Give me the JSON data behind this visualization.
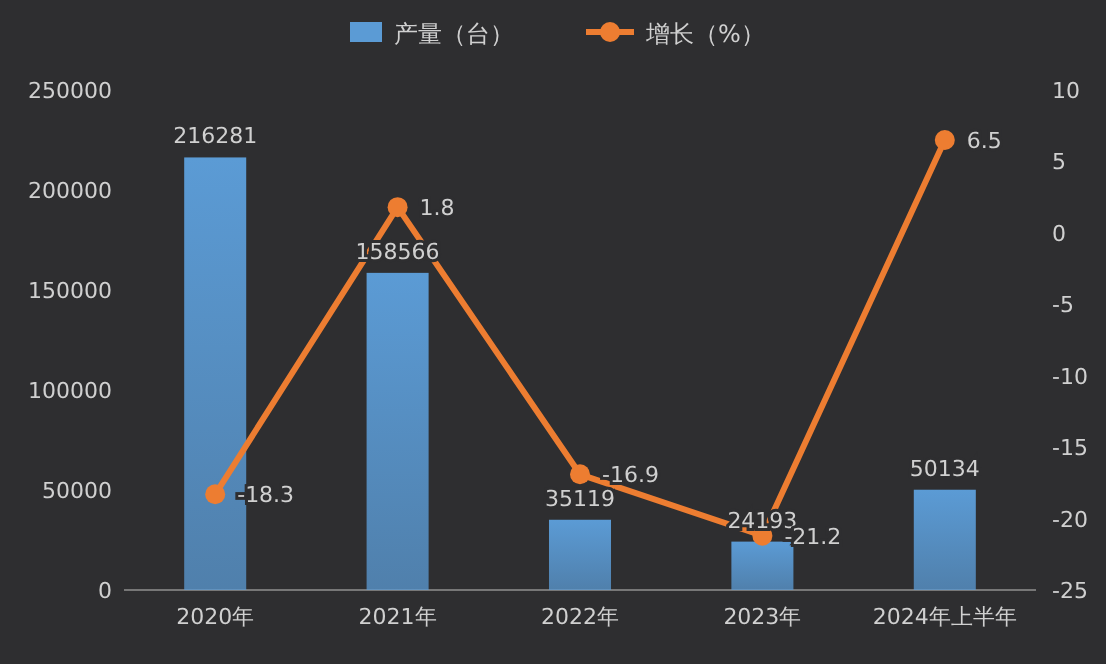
{
  "chart_data": {
    "type": "bar",
    "categories": [
      "2020年",
      "2021年",
      "2022年",
      "2023年",
      "2024年上半年"
    ],
    "series": [
      {
        "name": "产量（台）",
        "color": "#5b9bd5",
        "values": [
          216281,
          158566,
          35119,
          24193,
          50134
        ]
      },
      {
        "name": "增长（%）",
        "type": "line",
        "axis": "y2",
        "color": "#ed7d31",
        "values": [
          -18.3,
          1.8,
          -16.9,
          -21.2,
          6.5
        ]
      }
    ],
    "ylim": [
      0,
      250000
    ],
    "yticks": [
      0,
      50000,
      100000,
      150000,
      200000,
      250000
    ],
    "y2lim": [
      -25,
      10
    ],
    "y2ticks": [
      -25,
      -20,
      -15,
      -10,
      -5,
      0,
      5,
      10
    ],
    "legend": "top",
    "marker": "circle",
    "line_style": "solid",
    "data_labels": true,
    "grid": false
  }
}
